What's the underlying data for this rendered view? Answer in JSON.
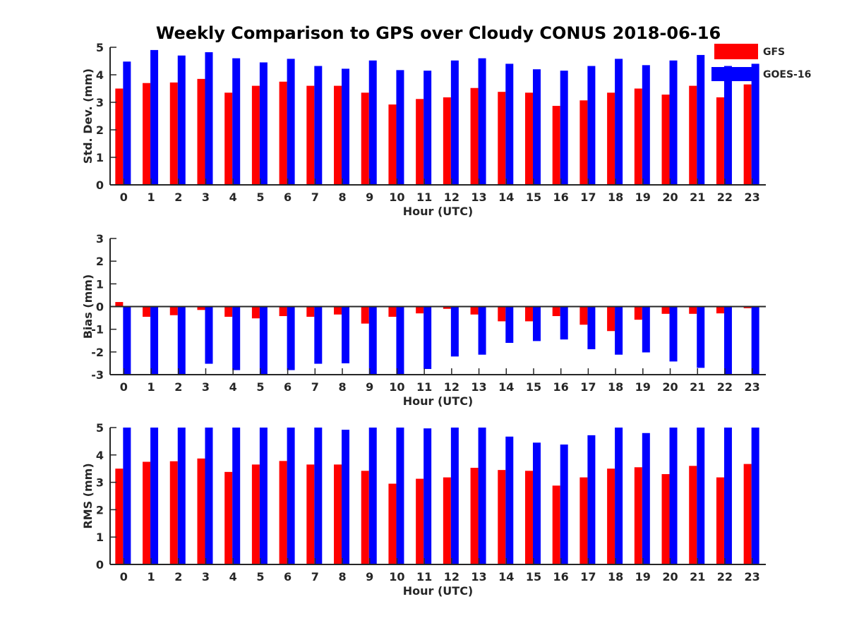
{
  "title": "Weekly Comparison to GPS over Cloudy CONUS 2018-06-16",
  "legend": {
    "placement": "top-right",
    "items": [
      {
        "label": "GFS",
        "color": "#ff0000"
      },
      {
        "label": "GOES-16",
        "color": "#0000ff"
      }
    ]
  },
  "chart_data": [
    {
      "type": "bar",
      "ylabel": "Std. Dev. (mm)",
      "xlabel": "Hour (UTC)",
      "ylim": [
        0,
        5
      ],
      "yticks": [
        0,
        1,
        2,
        3,
        4,
        5
      ],
      "categories": [
        "0",
        "1",
        "2",
        "3",
        "4",
        "5",
        "6",
        "7",
        "8",
        "9",
        "10",
        "11",
        "12",
        "13",
        "14",
        "15",
        "16",
        "17",
        "18",
        "19",
        "20",
        "21",
        "22",
        "23"
      ],
      "series": [
        {
          "name": "GFS",
          "color": "#ff0000",
          "values": [
            3.5,
            3.7,
            3.72,
            3.85,
            3.35,
            3.6,
            3.75,
            3.6,
            3.6,
            3.35,
            2.92,
            3.12,
            3.18,
            3.52,
            3.38,
            3.35,
            2.87,
            3.07,
            3.35,
            3.5,
            3.28,
            3.6,
            3.18,
            3.65
          ]
        },
        {
          "name": "GOES-16",
          "color": "#0000ff",
          "values": [
            4.48,
            4.9,
            4.7,
            4.82,
            4.6,
            4.45,
            4.58,
            4.32,
            4.22,
            4.52,
            4.17,
            4.15,
            4.52,
            4.6,
            4.4,
            4.2,
            4.15,
            4.32,
            4.58,
            4.35,
            4.52,
            4.72,
            4.32,
            4.4
          ]
        }
      ]
    },
    {
      "type": "bar",
      "ylabel": "Bias (mm)",
      "xlabel": "Hour (UTC)",
      "ylim": [
        -3,
        3
      ],
      "yticks": [
        -3,
        -2,
        -1,
        0,
        1,
        2,
        3
      ],
      "categories": [
        "0",
        "1",
        "2",
        "3",
        "4",
        "5",
        "6",
        "7",
        "8",
        "9",
        "10",
        "11",
        "12",
        "13",
        "14",
        "15",
        "16",
        "17",
        "18",
        "19",
        "20",
        "21",
        "22",
        "23"
      ],
      "series": [
        {
          "name": "GFS",
          "color": "#ff0000",
          "values": [
            0.2,
            -0.45,
            -0.38,
            -0.15,
            -0.45,
            -0.52,
            -0.42,
            -0.45,
            -0.35,
            -0.75,
            -0.45,
            -0.3,
            -0.1,
            -0.35,
            -0.65,
            -0.65,
            -0.42,
            -0.8,
            -1.08,
            -0.58,
            -0.32,
            -0.32,
            -0.3,
            -0.07
          ]
        },
        {
          "name": "GOES-16",
          "color": "#0000ff",
          "values": [
            -3,
            -3,
            -3,
            -2.52,
            -2.8,
            -3,
            -2.8,
            -2.52,
            -2.5,
            -3,
            -3,
            -2.75,
            -2.2,
            -2.12,
            -1.6,
            -1.52,
            -1.45,
            -1.88,
            -2.12,
            -2.02,
            -2.42,
            -2.7,
            -3,
            -3
          ]
        }
      ]
    },
    {
      "type": "bar",
      "ylabel": "RMS (mm)",
      "xlabel": "Hour (UTC)",
      "ylim": [
        0,
        5
      ],
      "yticks": [
        0,
        1,
        2,
        3,
        4,
        5
      ],
      "categories": [
        "0",
        "1",
        "2",
        "3",
        "4",
        "5",
        "6",
        "7",
        "8",
        "9",
        "10",
        "11",
        "12",
        "13",
        "14",
        "15",
        "16",
        "17",
        "18",
        "19",
        "20",
        "21",
        "22",
        "23"
      ],
      "series": [
        {
          "name": "GFS",
          "color": "#ff0000",
          "values": [
            3.5,
            3.75,
            3.77,
            3.87,
            3.38,
            3.65,
            3.78,
            3.65,
            3.65,
            3.42,
            2.95,
            3.13,
            3.18,
            3.53,
            3.45,
            3.42,
            2.88,
            3.18,
            3.5,
            3.55,
            3.3,
            3.6,
            3.18,
            3.67
          ]
        },
        {
          "name": "GOES-16",
          "color": "#0000ff",
          "values": [
            5,
            5,
            5,
            5,
            5,
            5,
            5,
            5,
            4.92,
            5,
            5,
            4.97,
            5,
            5,
            4.67,
            4.45,
            4.38,
            4.72,
            5,
            4.8,
            5,
            5,
            5,
            5
          ]
        }
      ]
    }
  ]
}
